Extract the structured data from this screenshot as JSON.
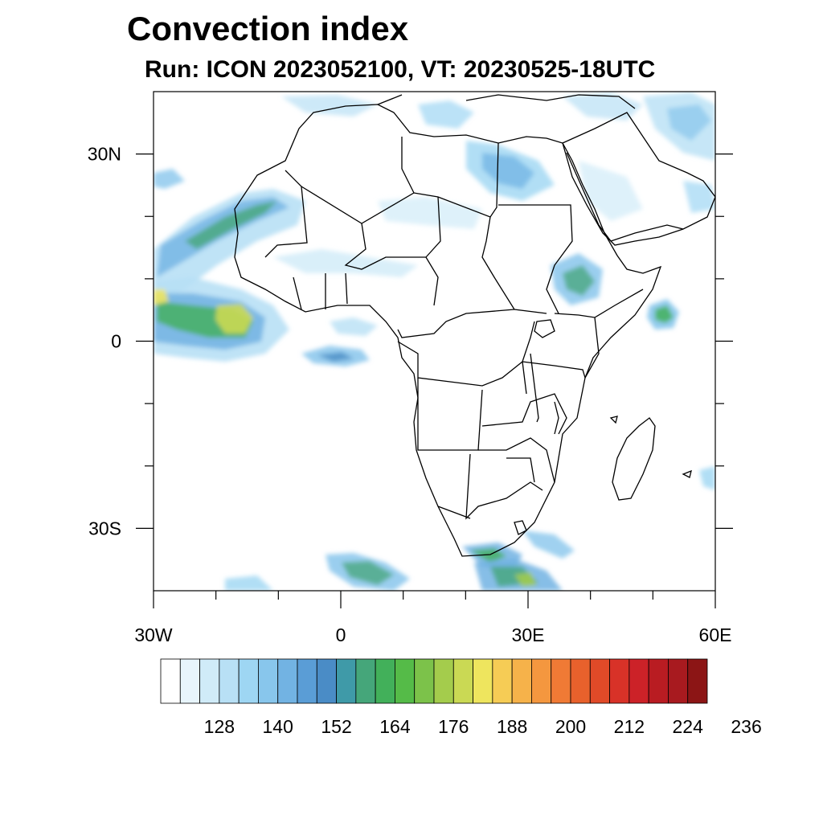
{
  "title": "Convection index",
  "subtitle": "Run: ICON 2023052100,  VT: 20230525-18UTC",
  "lat_labels": [
    {
      "text": "30N",
      "lat": 30
    },
    {
      "text": "0",
      "lat": 0
    },
    {
      "text": "30S",
      "lat": -30
    }
  ],
  "lon_labels": [
    {
      "text": "30W",
      "lon": -30
    },
    {
      "text": "0",
      "lon": 0
    },
    {
      "text": "30E",
      "lon": 30
    },
    {
      "text": "60E",
      "lon": 60
    }
  ],
  "map_extent": {
    "lon_min": -30,
    "lon_max": 60,
    "lat_min": -40,
    "lat_max": 40
  },
  "colorbar": {
    "colors": [
      "#ffffff",
      "#e8f5fc",
      "#d0ebf8",
      "#b8e0f5",
      "#9ed6f3",
      "#88c6ec",
      "#72b3e3",
      "#5a9dd6",
      "#4a8cc6",
      "#3f9aa8",
      "#45a67a",
      "#42b05a",
      "#55bb48",
      "#7cc24a",
      "#a4cc4c",
      "#cad954",
      "#eee55e",
      "#f6cc55",
      "#f6b24a",
      "#f4973f",
      "#f07a35",
      "#e8612c",
      "#e04a28",
      "#d83228",
      "#cc2228",
      "#b91c22",
      "#a81a1f",
      "#8c1515"
    ],
    "labels": [
      "128",
      "140",
      "152",
      "164",
      "176",
      "188",
      "200",
      "212",
      "224",
      "236"
    ]
  }
}
